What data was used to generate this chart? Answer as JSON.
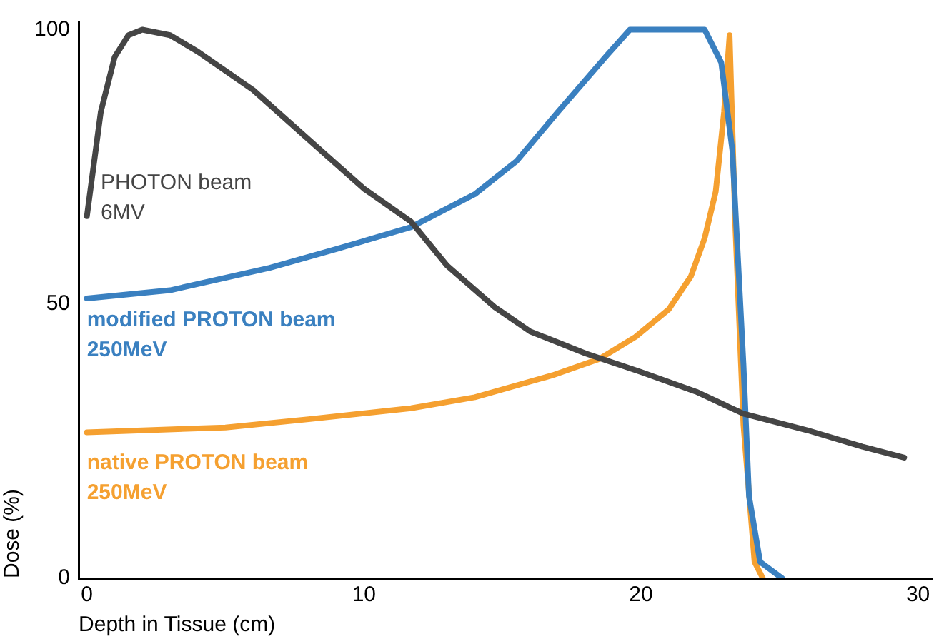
{
  "chart_data": {
    "type": "line",
    "xlabel": "Depth in Tissue (cm)",
    "ylabel": "Dose (%)",
    "xlim": [
      -0.3,
      30.5
    ],
    "xticks": [
      0,
      10,
      20,
      30
    ],
    "ylim": [
      0,
      101.5
    ],
    "yticks": [
      0,
      50,
      100
    ],
    "grid": false,
    "legend": false,
    "marker": "none",
    "line_style": "solid",
    "series": [
      {
        "name": "PHOTON beam 6MV",
        "color": "#454545",
        "x": [
          0,
          0.5,
          1,
          1.5,
          2,
          3,
          4,
          6,
          8,
          10,
          11.7,
          13,
          14.7,
          16,
          18,
          20,
          22,
          23.7,
          26,
          28,
          29.5
        ],
        "values": [
          66,
          85,
          95,
          99,
          100,
          99,
          96,
          89,
          80,
          71,
          65,
          57,
          49.5,
          45,
          41,
          37.6,
          34,
          30,
          27,
          24,
          22
        ]
      },
      {
        "name": "modified PROTON beam 250MeV",
        "color": "#3a80c0",
        "x": [
          0,
          3,
          6.6,
          9,
          11.7,
          14,
          15.5,
          17,
          18.8,
          19.6,
          21,
          22.3,
          22.9,
          23.3,
          23.7,
          23.9,
          24.3,
          25.1
        ],
        "values": [
          51,
          52.5,
          56.6,
          60,
          64,
          70,
          76,
          85,
          95.5,
          100,
          100,
          100,
          94,
          78,
          39,
          15,
          3,
          0
        ]
      },
      {
        "name": "native PROTON beam 250MeV",
        "color": "#f5a030",
        "x": [
          0,
          5,
          8,
          11.7,
          14,
          16.8,
          18.5,
          19.8,
          21,
          21.8,
          22.3,
          22.7,
          23,
          23.2,
          23.4,
          23.7,
          24.1,
          24.4
        ],
        "values": [
          26.6,
          27.5,
          29,
          31,
          33,
          37,
          40,
          44,
          49,
          55,
          62,
          70.5,
          85,
          99,
          65,
          28,
          3,
          0
        ]
      }
    ]
  }
}
